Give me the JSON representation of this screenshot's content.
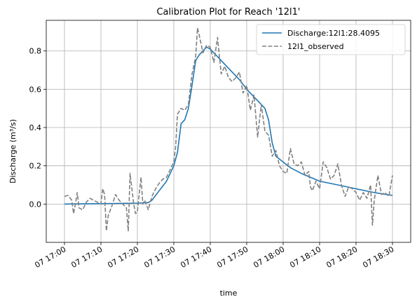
{
  "chart_data": {
    "type": "line",
    "title": "Calibration Plot for Reach '12l1'",
    "xlabel": "time",
    "ylabel": "Discharge (m³/s)",
    "x_unit": "minutes after 07 17:00",
    "xlim": [
      -5,
      95
    ],
    "ylim": [
      -0.2,
      0.96
    ],
    "grid": true,
    "legend_position": "top-right",
    "x_ticks": [
      {
        "value": 0,
        "label": "07 17:00"
      },
      {
        "value": 10,
        "label": "07 17:10"
      },
      {
        "value": 20,
        "label": "07 17:20"
      },
      {
        "value": 30,
        "label": "07 17:30"
      },
      {
        "value": 40,
        "label": "07 17:40"
      },
      {
        "value": 50,
        "label": "07 17:50"
      },
      {
        "value": 60,
        "label": "07 18:00"
      },
      {
        "value": 70,
        "label": "07 18:10"
      },
      {
        "value": 80,
        "label": "07 18:20"
      },
      {
        "value": 90,
        "label": "07 18:30"
      }
    ],
    "y_ticks": [
      {
        "value": 0.0,
        "label": "0.0"
      },
      {
        "value": 0.2,
        "label": "0.2"
      },
      {
        "value": 0.4,
        "label": "0.4"
      },
      {
        "value": 0.6,
        "label": "0.6"
      },
      {
        "value": 0.8,
        "label": "0.8"
      }
    ],
    "series": [
      {
        "name": "Discharge:12l1:28.4095",
        "color": "#1f77b4",
        "style": "solid",
        "points": [
          [
            0,
            0.0
          ],
          [
            10,
            0.002
          ],
          [
            20,
            0.005
          ],
          [
            23,
            0.008
          ],
          [
            24,
            0.02
          ],
          [
            26,
            0.07
          ],
          [
            28,
            0.12
          ],
          [
            30,
            0.2
          ],
          [
            31,
            0.27
          ],
          [
            32,
            0.42
          ],
          [
            33,
            0.44
          ],
          [
            34,
            0.5
          ],
          [
            35,
            0.62
          ],
          [
            36,
            0.75
          ],
          [
            37,
            0.78
          ],
          [
            38,
            0.8
          ],
          [
            39,
            0.82
          ],
          [
            40,
            0.81
          ],
          [
            41,
            0.79
          ],
          [
            42,
            0.77
          ],
          [
            44,
            0.73
          ],
          [
            46,
            0.69
          ],
          [
            48,
            0.65
          ],
          [
            50,
            0.6
          ],
          [
            52,
            0.56
          ],
          [
            54,
            0.52
          ],
          [
            55,
            0.5
          ],
          [
            56,
            0.44
          ],
          [
            57,
            0.32
          ],
          [
            58,
            0.25
          ],
          [
            60,
            0.22
          ],
          [
            62,
            0.19
          ],
          [
            65,
            0.16
          ],
          [
            70,
            0.12
          ],
          [
            75,
            0.1
          ],
          [
            80,
            0.08
          ],
          [
            85,
            0.06
          ],
          [
            90,
            0.045
          ]
        ]
      },
      {
        "name": "12l1_observed",
        "color": "#808080",
        "style": "dashed",
        "points": [
          [
            0,
            0.04
          ],
          [
            1,
            0.045
          ],
          [
            2,
            0.02
          ],
          [
            2.5,
            -0.05
          ],
          [
            3,
            0.0
          ],
          [
            3.5,
            0.06
          ],
          [
            4,
            -0.02
          ],
          [
            5,
            -0.03
          ],
          [
            6,
            0.01
          ],
          [
            7,
            0.03
          ],
          [
            8,
            0.02
          ],
          [
            9,
            0.01
          ],
          [
            10,
            0.0
          ],
          [
            10.5,
            0.08
          ],
          [
            11,
            0.05
          ],
          [
            11.5,
            -0.14
          ],
          [
            12,
            -0.06
          ],
          [
            13,
            -0.01
          ],
          [
            14,
            0.05
          ],
          [
            15,
            0.02
          ],
          [
            16,
            0.0
          ],
          [
            17,
            -0.02
          ],
          [
            17.5,
            -0.14
          ],
          [
            18,
            0.16
          ],
          [
            18.5,
            0.08
          ],
          [
            19,
            0.0
          ],
          [
            19.5,
            -0.05
          ],
          [
            20,
            -0.04
          ],
          [
            21,
            0.14
          ],
          [
            21.5,
            0.0
          ],
          [
            22,
            0.02
          ],
          [
            23,
            -0.03
          ],
          [
            24,
            0.04
          ],
          [
            25,
            0.08
          ],
          [
            26,
            0.11
          ],
          [
            27,
            0.13
          ],
          [
            28,
            0.14
          ],
          [
            29,
            0.18
          ],
          [
            30,
            0.22
          ],
          [
            30.5,
            0.3
          ],
          [
            31,
            0.47
          ],
          [
            32,
            0.5
          ],
          [
            33,
            0.49
          ],
          [
            34,
            0.52
          ],
          [
            35,
            0.68
          ],
          [
            36,
            0.77
          ],
          [
            36.5,
            0.92
          ],
          [
            37,
            0.88
          ],
          [
            38,
            0.79
          ],
          [
            39,
            0.83
          ],
          [
            40,
            0.82
          ],
          [
            41,
            0.74
          ],
          [
            42,
            0.87
          ],
          [
            43,
            0.68
          ],
          [
            44,
            0.72
          ],
          [
            45,
            0.66
          ],
          [
            46,
            0.64
          ],
          [
            47,
            0.66
          ],
          [
            48,
            0.69
          ],
          [
            49,
            0.58
          ],
          [
            50,
            0.62
          ],
          [
            51,
            0.49
          ],
          [
            52,
            0.57
          ],
          [
            53,
            0.35
          ],
          [
            54,
            0.52
          ],
          [
            55,
            0.38
          ],
          [
            56,
            0.36
          ],
          [
            57,
            0.25
          ],
          [
            58,
            0.28
          ],
          [
            59,
            0.2
          ],
          [
            60,
            0.17
          ],
          [
            61,
            0.16
          ],
          [
            62,
            0.29
          ],
          [
            63,
            0.21
          ],
          [
            64,
            0.2
          ],
          [
            65,
            0.22
          ],
          [
            66,
            0.15
          ],
          [
            67,
            0.17
          ],
          [
            67.5,
            0.09
          ],
          [
            68,
            0.07
          ],
          [
            69,
            0.12
          ],
          [
            70,
            0.08
          ],
          [
            71,
            0.22
          ],
          [
            72,
            0.19
          ],
          [
            73,
            0.13
          ],
          [
            74,
            0.15
          ],
          [
            75,
            0.21
          ],
          [
            76,
            0.1
          ],
          [
            77,
            0.04
          ],
          [
            78,
            0.09
          ],
          [
            79,
            0.08
          ],
          [
            80,
            0.06
          ],
          [
            81,
            0.02
          ],
          [
            82,
            0.06
          ],
          [
            83,
            0.03
          ],
          [
            84,
            0.1
          ],
          [
            84.5,
            -0.11
          ],
          [
            85,
            0.02
          ],
          [
            86,
            0.15
          ],
          [
            87,
            0.05
          ],
          [
            88,
            0.06
          ],
          [
            89,
            0.04
          ],
          [
            90,
            0.15
          ]
        ]
      }
    ]
  }
}
